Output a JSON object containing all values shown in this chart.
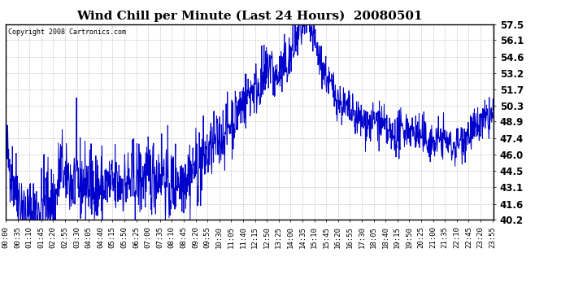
{
  "title": "Wind Chill per Minute (Last 24 Hours)  20080501",
  "copyright_text": "Copyright 2008 Cartronics.com",
  "line_color": "#0000cc",
  "background_color": "#ffffff",
  "grid_color": "#c8c8c8",
  "ylim": [
    40.2,
    57.5
  ],
  "yticks": [
    40.2,
    41.6,
    43.1,
    44.5,
    46.0,
    47.4,
    48.9,
    50.3,
    51.7,
    53.2,
    54.6,
    56.1,
    57.5
  ],
  "title_fontsize": 11,
  "xlabel_fontsize": 6.5,
  "ylabel_fontsize": 8.5,
  "n_minutes": 1440
}
